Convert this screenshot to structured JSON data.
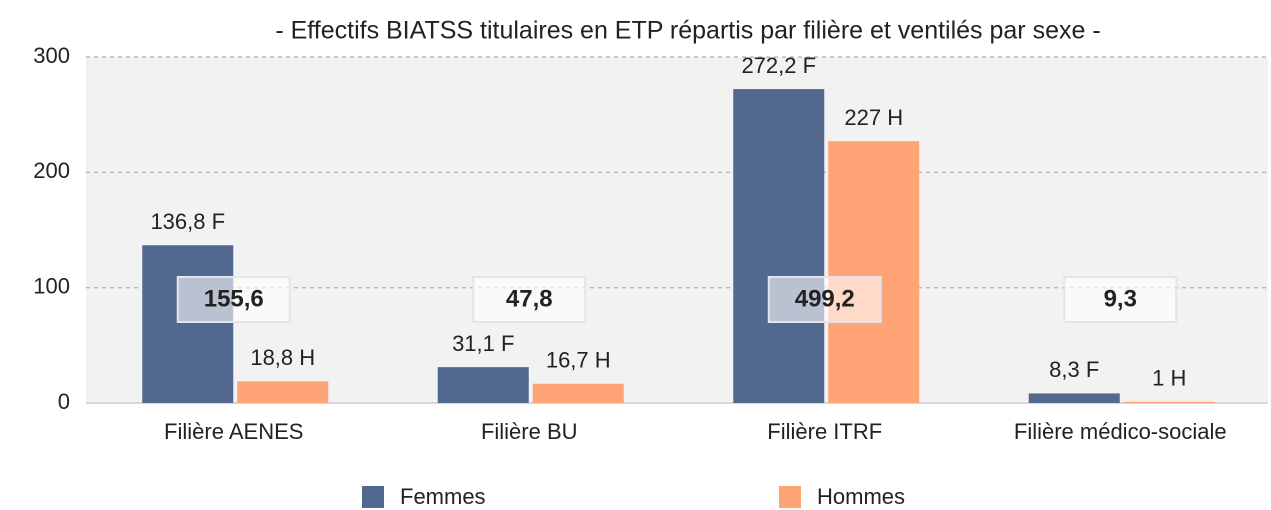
{
  "chart_data": {
    "type": "bar",
    "title": "- Effectifs BIATSS titulaires en ETP répartis par filière et ventilés par sexe -",
    "categories": [
      "Filière AENES",
      "Filière BU",
      "Filière ITRF",
      "Filière médico-sociale"
    ],
    "series": [
      {
        "name": "Femmes",
        "color": "#53688f",
        "values": [
          136.8,
          31.1,
          272.2,
          8.3
        ],
        "value_labels": [
          "136,8 F",
          "31,1 F",
          "272,2 F",
          "8,3 F"
        ],
        "label_color": "#1f2a44"
      },
      {
        "name": "Hommes",
        "color": "#ffa477",
        "values": [
          18.8,
          16.7,
          227,
          1
        ],
        "value_labels": [
          "18,8 H",
          "16,7 H",
          "227 H",
          "1 H"
        ],
        "label_color": "#ec8550"
      }
    ],
    "totals": {
      "values": [
        155.6,
        47.8,
        499.2,
        9.3
      ],
      "value_labels": [
        "155,6",
        "47,8",
        "499,2",
        "9,3"
      ]
    },
    "ylim": [
      0,
      300
    ],
    "yticks": [
      0,
      100,
      200,
      300
    ],
    "grid": true,
    "legend": "bottom"
  }
}
